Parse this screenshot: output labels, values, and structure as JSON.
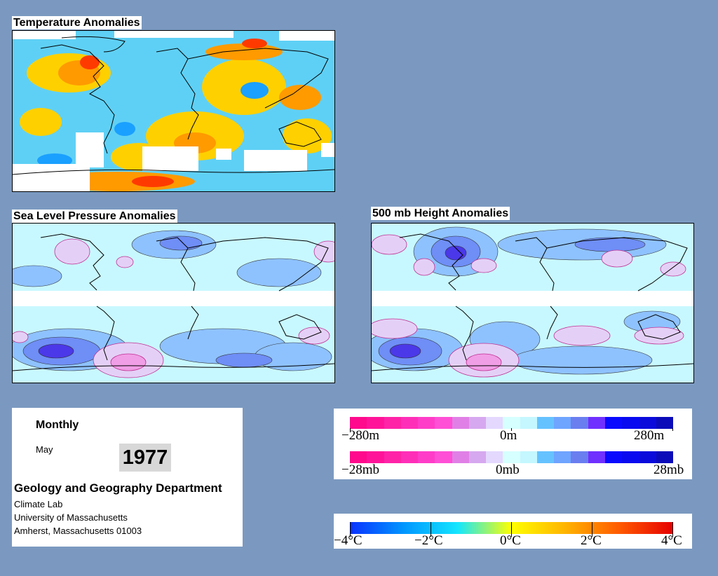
{
  "panels": {
    "temperature": {
      "title": "Temperature Anomalies"
    },
    "slp": {
      "title": "Sea Level Pressure Anomalies"
    },
    "height": {
      "title": "500 mb Height Anomalies"
    }
  },
  "info": {
    "period": "Monthly",
    "month": "May",
    "year": "1977",
    "department": "Geology and Geography Department",
    "lines": [
      "Climate Lab",
      "University of Massachusetts",
      "Amherst, Massachusetts 01003"
    ]
  },
  "legend_height": {
    "labels": [
      "−280m",
      "0m",
      "280m"
    ],
    "colors": [
      "#ff0a8c",
      "#ff1499",
      "#ff23a8",
      "#ff2eb8",
      "#ff3cc8",
      "#ff4fd6",
      "#e080e6",
      "#d6a8ef",
      "#e4d8ff",
      "#d6ffff",
      "#c4f7ff",
      "#66c2ff",
      "#6fa4ff",
      "#6a7ef0",
      "#7030ff",
      "#0a0aff",
      "#0a0af0",
      "#0b0bdc",
      "#0b0bb9"
    ]
  },
  "legend_slp": {
    "labels": [
      "−28mb",
      "0mb",
      "28mb"
    ],
    "colors": [
      "#ff0a8c",
      "#ff1499",
      "#ff23a8",
      "#ff2eb8",
      "#ff3cc8",
      "#ff4fd6",
      "#e080e6",
      "#d6a8ef",
      "#e4d8ff",
      "#d6ffff",
      "#c4f7ff",
      "#66c2ff",
      "#6fa4ff",
      "#6a7ef0",
      "#7030ff",
      "#0a0aff",
      "#0a0af0",
      "#0b0bdc",
      "#0b0bb9"
    ]
  },
  "legend_temp": {
    "labels": [
      "−4°C",
      "−2°C",
      "0°C",
      "2°C",
      "4°C"
    ],
    "gradient": [
      "#0a32ff",
      "#0096ff",
      "#14e6ff",
      "#ffff00",
      "#ffb400",
      "#ff5a00",
      "#e60000"
    ]
  }
}
